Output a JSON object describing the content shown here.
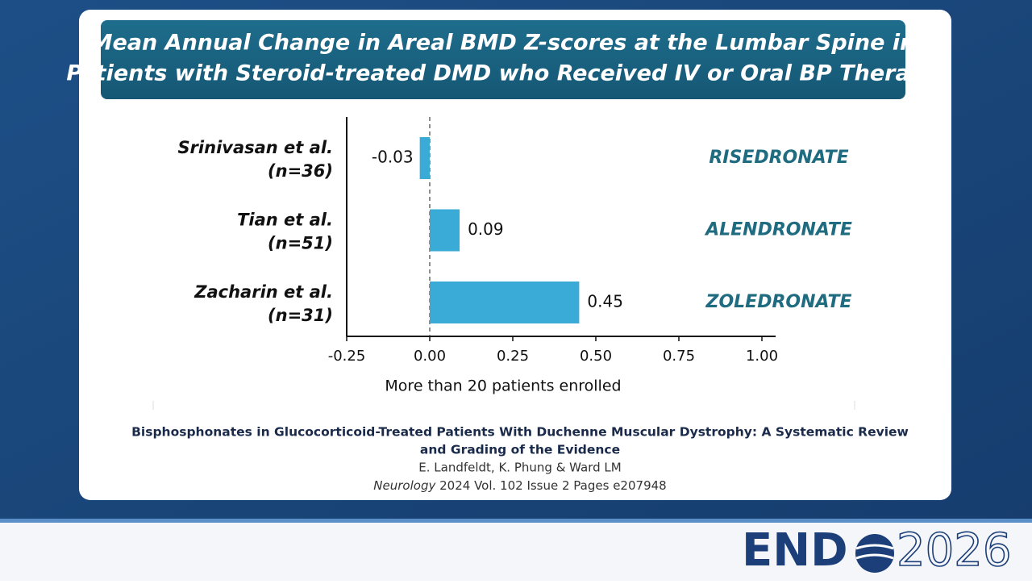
{
  "header": {
    "title_lines": [
      "Mean Annual Change in Areal BMD Z-scores at the Lumbar Spine in",
      "Patients with Steroid-treated DMD who Received IV or Oral BP Therapy"
    ]
  },
  "chart_data": {
    "type": "hbar",
    "categories": [
      "Srinivasan et al.",
      "Tian et al.",
      "Zacharin et al."
    ],
    "sample_sizes": [
      "(n=36)",
      "(n=51)",
      "(n=31)"
    ],
    "annotations": [
      "RISEDRONATE",
      "ALENDRONATE",
      "ZOLEDRONATE"
    ],
    "values": [
      -0.03,
      0.09,
      0.45
    ],
    "color": "#3aaad6",
    "xlim": [
      -0.25,
      1.0
    ],
    "xticks": [
      -0.25,
      {
        "value": 0,
        "label": "0.00"
      },
      0.25,
      {
        "value": 0.5,
        "label": "0.50"
      },
      0.75,
      {
        "value": 1.0,
        "label": "1.00"
      }
    ],
    "xlabel": "More than 20 patients enrolled"
  },
  "citation": {
    "title_lines": [
      "Bisphosphonates in Glucocorticoid-Treated Patients With Duchenne Muscular Dystrophy: A Systematic Review",
      "and Grading of the Evidence"
    ],
    "authors": "E. Landfeldt, K. Phung & Ward LM",
    "journal": "Neurology",
    "details": "2024 Vol. 102 Issue 2 Pages e207948"
  },
  "logo": {
    "name": "END",
    "year": "2026"
  }
}
